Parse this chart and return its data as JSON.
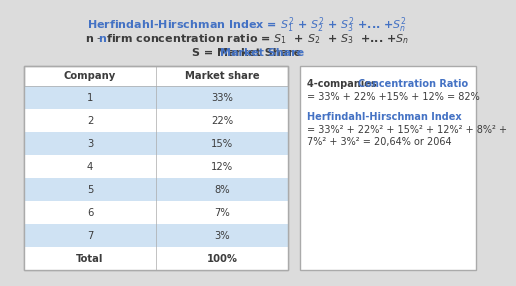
{
  "bg_color": "#dcdcdc",
  "title_color": "#3c3c3c",
  "blue_color": "#4472C4",
  "table_companies": [
    "1",
    "2",
    "3",
    "4",
    "5",
    "6",
    "7",
    "Total"
  ],
  "table_shares": [
    "33%",
    "22%",
    "15%",
    "12%",
    "8%",
    "7%",
    "3%",
    "100%"
  ],
  "table_bg_light": "#cfe2f3",
  "box_line1_bold": "4-companies ",
  "box_line1_blue": "Concentration Ratio",
  "box_line2": "= 33% + 22% +15% + 12% = 82%",
  "box_line3_blue": "Herfindahl-Hirschman Index",
  "box_line4": "= 33%² + 22%² + 15%² + 12%² + 8%² +",
  "box_line5": "7%² + 3%² = 20,64% or 2064"
}
